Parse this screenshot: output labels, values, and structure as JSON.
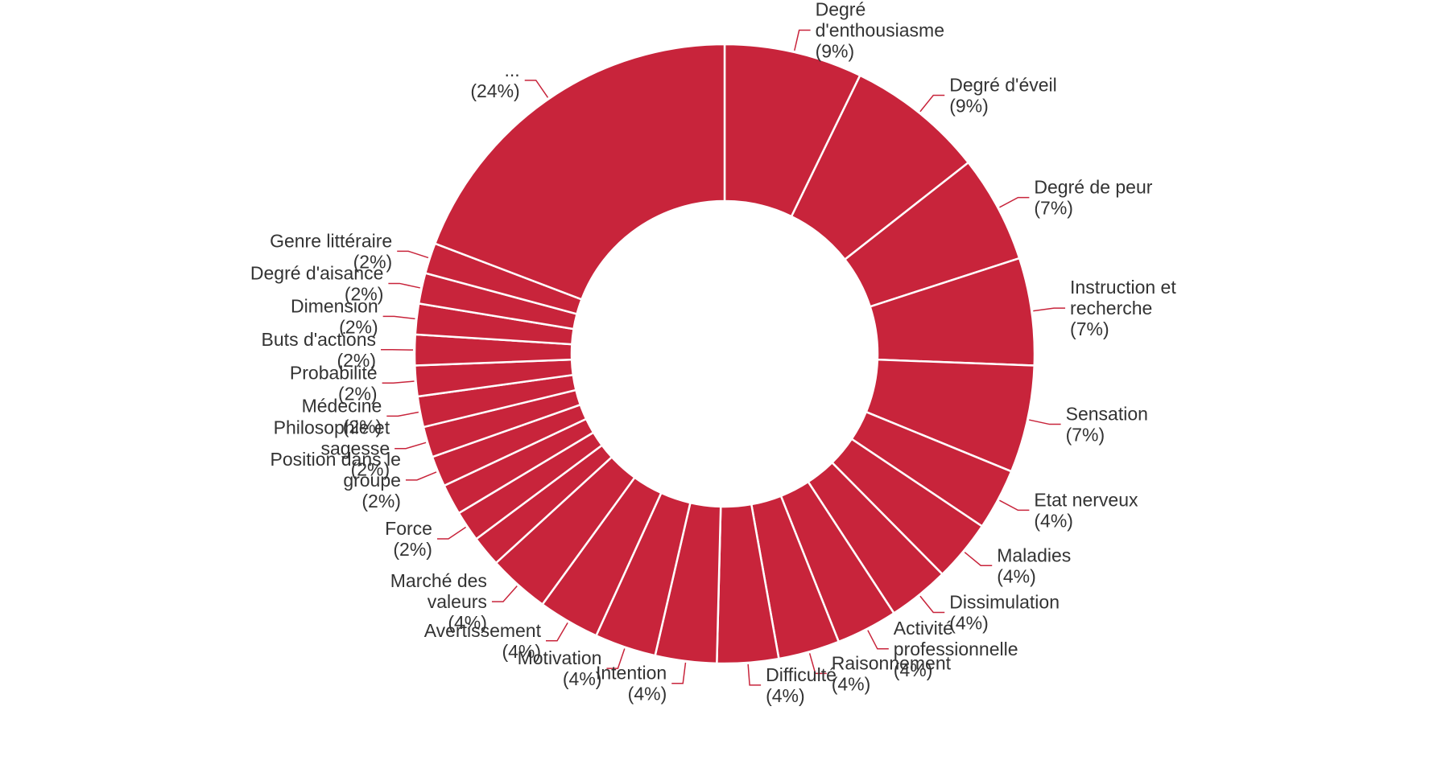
{
  "chart_data": {
    "type": "pie",
    "donut": true,
    "color": "#c8243b",
    "separator_color": "#ffffff",
    "leader_color": "#c8243b",
    "text_color": "#333333",
    "unit": "%",
    "slices": [
      {
        "label": [
          "Degré",
          "d'enthousiasme"
        ],
        "pct_label": "(9%)",
        "value": 9
      },
      {
        "label": [
          "Degré d'éveil"
        ],
        "pct_label": "(9%)",
        "value": 9
      },
      {
        "label": [
          "Degré de peur"
        ],
        "pct_label": "(7%)",
        "value": 7
      },
      {
        "label": [
          "Instruction et",
          "recherche"
        ],
        "pct_label": "(7%)",
        "value": 7
      },
      {
        "label": [
          "Sensation"
        ],
        "pct_label": "(7%)",
        "value": 7
      },
      {
        "label": [
          "Etat nerveux"
        ],
        "pct_label": "(4%)",
        "value": 4
      },
      {
        "label": [
          "Maladies"
        ],
        "pct_label": "(4%)",
        "value": 4
      },
      {
        "label": [
          "Dissimulation"
        ],
        "pct_label": "(4%)",
        "value": 4
      },
      {
        "label": [
          "Activité",
          "professionnelle"
        ],
        "pct_label": "(4%)",
        "value": 4
      },
      {
        "label": [
          "Raisonnement"
        ],
        "pct_label": "(4%)",
        "value": 4
      },
      {
        "label": [
          "Difficulté"
        ],
        "pct_label": "(4%)",
        "value": 4
      },
      {
        "label": [
          "Intention"
        ],
        "pct_label": "(4%)",
        "value": 4
      },
      {
        "label": [
          "Motivation"
        ],
        "pct_label": "(4%)",
        "value": 4
      },
      {
        "label": [
          "Avertissement"
        ],
        "pct_label": "(4%)",
        "value": 4
      },
      {
        "label": [
          "Marché des",
          "valeurs"
        ],
        "pct_label": "(4%)",
        "value": 4
      },
      {
        "label": [],
        "pct_label": "",
        "value": 2
      },
      {
        "label": [
          "Force"
        ],
        "pct_label": "(2%)",
        "value": 2
      },
      {
        "label": [],
        "pct_label": "",
        "value": 2
      },
      {
        "label": [
          "Position dans le",
          "groupe"
        ],
        "pct_label": "(2%)",
        "value": 2
      },
      {
        "label": [
          "Philosophie et",
          "sagesse"
        ],
        "pct_label": "(2%)",
        "value": 2
      },
      {
        "label": [
          "Médecine"
        ],
        "pct_label": "(2%)",
        "value": 2
      },
      {
        "label": [
          "Probabilité"
        ],
        "pct_label": "(2%)",
        "value": 2
      },
      {
        "label": [
          "Buts d'actions"
        ],
        "pct_label": "(2%)",
        "value": 2
      },
      {
        "label": [
          "Dimension"
        ],
        "pct_label": "(2%)",
        "value": 2
      },
      {
        "label": [
          "Degré d'aisance"
        ],
        "pct_label": "(2%)",
        "value": 2
      },
      {
        "label": [
          "Genre littéraire"
        ],
        "pct_label": "(2%)",
        "value": 2
      },
      {
        "label": [
          "..."
        ],
        "pct_label": "(24%)",
        "value": 24
      }
    ]
  }
}
